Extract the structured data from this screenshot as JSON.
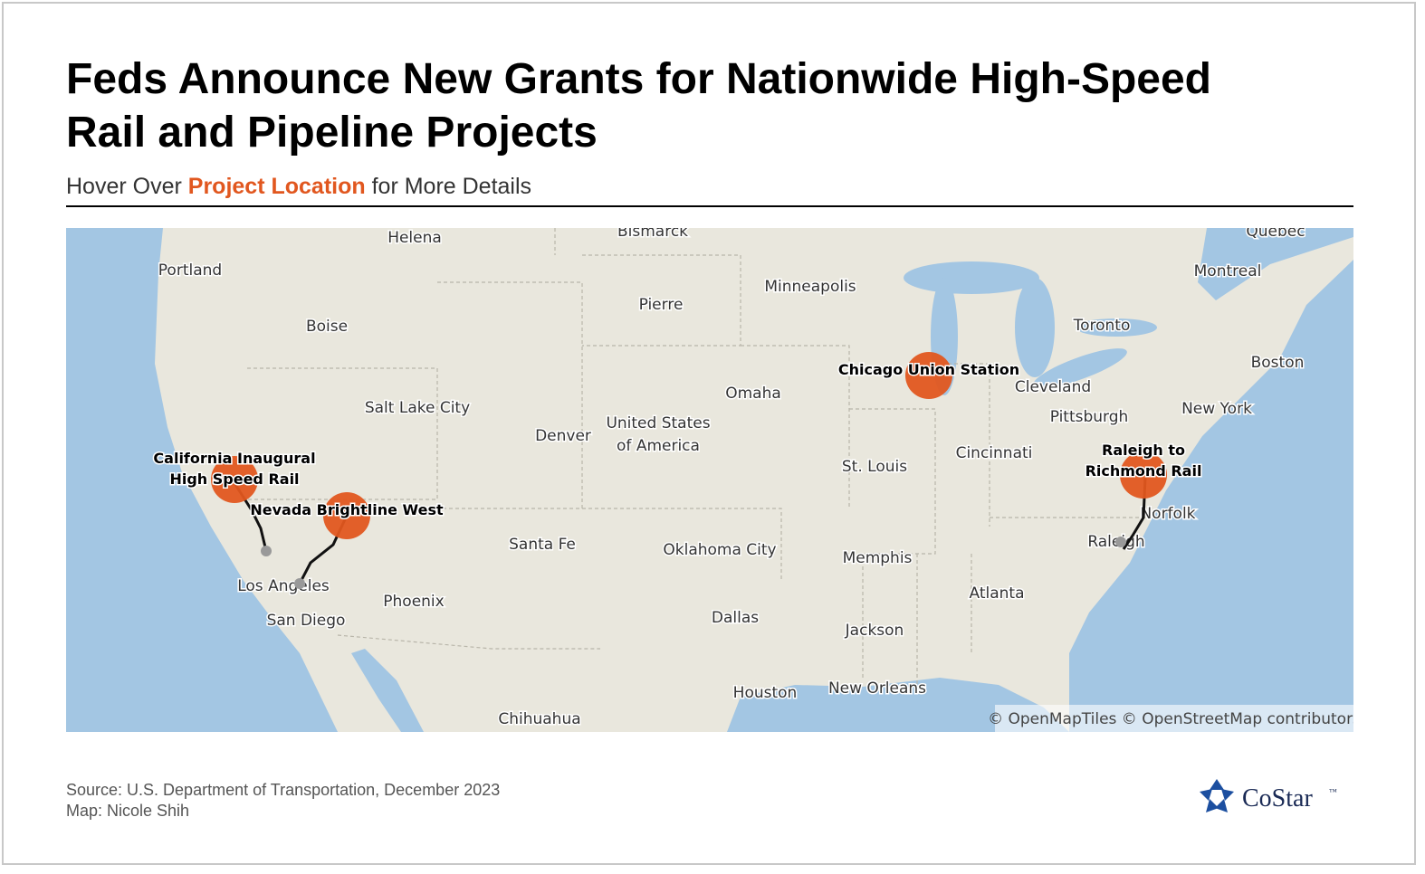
{
  "header": {
    "title_lines": [
      "Feds Announce New Grants for Nationwide High-Speed",
      "Rail and Pipeline Projects"
    ],
    "subtitle": {
      "before": "Hover Over",
      "highlight": "Project Location",
      "after": "for More Details"
    }
  },
  "map": {
    "cities": [
      "Helena",
      "Bismarck",
      "Quebec",
      "Portland",
      "Montreal",
      "Pierre",
      "Minneapolis",
      "Boise",
      "Toronto",
      "Boston",
      "Omaha",
      "Cleveland",
      "Salt Lake City",
      "New York",
      "Pittsburgh",
      "Denver",
      "United States",
      "of America",
      "Cincinnati",
      "St. Louis",
      "Norfolk",
      "Santa Fe",
      "Oklahoma City",
      "Raleigh",
      "Memphis",
      "Los Angeles",
      "Phoenix",
      "Atlanta",
      "Dallas",
      "San Diego",
      "Jackson",
      "Houston",
      "New Orleans",
      "Chihuahua"
    ],
    "projects": [
      {
        "label_lines": [
          "California Inaugural",
          "High Speed Rail"
        ]
      },
      {
        "label_lines": [
          "Nevada Brightline West"
        ]
      },
      {
        "label_lines": [
          "Chicago Union Station"
        ]
      },
      {
        "label_lines": [
          "Raleigh to",
          "Richmond Rail"
        ]
      }
    ],
    "attribution": "© OpenMapTiles © OpenStreetMap contributors"
  },
  "footer": {
    "source": "Source: U.S. Department of Transportation, December 2023",
    "credit": "Map: Nicole Shih",
    "logo": "CoStar",
    "logo_mark": "™"
  }
}
